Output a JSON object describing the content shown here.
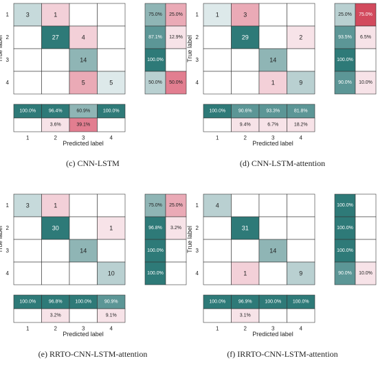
{
  "labels": {
    "ylabel": "True label",
    "xlabel": "Predicted label",
    "ticks": [
      "1",
      "2",
      "3",
      "4"
    ]
  },
  "colors": {
    "teal_dark": "#2e7a78",
    "teal_mid": "#8fb5b5",
    "teal_light": "#dde9ea",
    "pink_dark": "#d24a5d",
    "pink_mid": "#eaaab6",
    "pink_light": "#f7e3e8",
    "grid": "#333333"
  },
  "chart_data": [
    {
      "type": "heatmap",
      "caption": "(c)   CNN-LSTM",
      "matrix": [
        [
          3,
          1,
          null,
          null
        ],
        [
          null,
          27,
          4,
          null
        ],
        [
          null,
          null,
          14,
          null
        ],
        [
          null,
          null,
          5,
          5
        ]
      ],
      "row_summary": [
        [
          "75.0%",
          "25.0%"
        ],
        [
          "87.1%",
          "12.9%"
        ],
        [
          "100.0%",
          ""
        ],
        [
          "50.0%",
          "50.0%"
        ]
      ],
      "col_summary": [
        [
          "100.0%",
          "96.4%",
          "60.9%",
          "100.0%"
        ],
        [
          "",
          "3.6%",
          "39.1%",
          ""
        ]
      ]
    },
    {
      "type": "heatmap",
      "caption": "(d)   CNN-LSTM-attention",
      "matrix": [
        [
          1,
          3,
          null,
          null
        ],
        [
          null,
          29,
          null,
          2
        ],
        [
          null,
          null,
          14,
          null
        ],
        [
          null,
          null,
          1,
          9
        ]
      ],
      "row_summary": [
        [
          "25.0%",
          "75.0%"
        ],
        [
          "93.5%",
          "6.5%"
        ],
        [
          "100.0%",
          ""
        ],
        [
          "90.0%",
          "10.0%"
        ]
      ],
      "col_summary": [
        [
          "100.0%",
          "90.6%",
          "93.3%",
          "81.8%"
        ],
        [
          "",
          "9.4%",
          "6.7%",
          "18.2%"
        ]
      ]
    },
    {
      "type": "heatmap",
      "caption": "(e)   RRTO-CNN-LSTM-attention",
      "matrix": [
        [
          3,
          1,
          null,
          null
        ],
        [
          null,
          30,
          null,
          1
        ],
        [
          null,
          null,
          14,
          null
        ],
        [
          null,
          null,
          null,
          10
        ]
      ],
      "row_summary": [
        [
          "75.0%",
          "25.0%"
        ],
        [
          "96.8%",
          "3.2%"
        ],
        [
          "100.0%",
          ""
        ],
        [
          "100.0%",
          ""
        ]
      ],
      "col_summary": [
        [
          "100.0%",
          "96.8%",
          "100.0%",
          "90.9%"
        ],
        [
          "",
          "3.2%",
          "",
          "9.1%"
        ]
      ]
    },
    {
      "type": "heatmap",
      "caption": "(f)   IRRTO-CNN-LSTM-attention",
      "matrix": [
        [
          4,
          null,
          null,
          null
        ],
        [
          null,
          31,
          null,
          null
        ],
        [
          null,
          null,
          14,
          null
        ],
        [
          null,
          1,
          null,
          9
        ]
      ],
      "row_summary": [
        [
          "100.0%",
          ""
        ],
        [
          "100.0%",
          ""
        ],
        [
          "100.0%",
          ""
        ],
        [
          "90.0%",
          "10.0%"
        ]
      ],
      "col_summary": [
        [
          "100.0%",
          "96.9%",
          "100.0%",
          "100.0%"
        ],
        [
          "",
          "3.1%",
          "",
          ""
        ]
      ]
    }
  ]
}
